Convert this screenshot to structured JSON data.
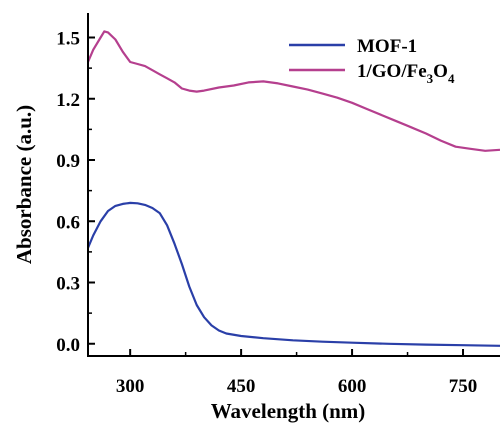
{
  "chart_data": {
    "type": "line",
    "xlabel": "Wavelength (nm)",
    "ylabel": "Absorbance (a.u.)",
    "xlim": [
      243,
      800
    ],
    "ylim": [
      -0.06,
      1.62
    ],
    "xticks": [
      300,
      450,
      600,
      750
    ],
    "xtick_labels": [
      "300",
      "450",
      "600",
      "750"
    ],
    "yticks": [
      0.0,
      0.3,
      0.6,
      0.9,
      1.2,
      1.5
    ],
    "ytick_labels": [
      "0.0",
      "0.3",
      "0.6",
      "0.9",
      "1.2",
      "1.5"
    ],
    "grid": false,
    "legend_position": "top-right",
    "series": [
      {
        "name": "MOF-1",
        "color": "#2a3fa8",
        "points": [
          [
            243,
            0.47
          ],
          [
            250,
            0.53
          ],
          [
            260,
            0.6
          ],
          [
            270,
            0.65
          ],
          [
            280,
            0.675
          ],
          [
            290,
            0.685
          ],
          [
            300,
            0.69
          ],
          [
            310,
            0.688
          ],
          [
            320,
            0.68
          ],
          [
            330,
            0.665
          ],
          [
            340,
            0.64
          ],
          [
            350,
            0.58
          ],
          [
            360,
            0.49
          ],
          [
            370,
            0.39
          ],
          [
            380,
            0.28
          ],
          [
            390,
            0.19
          ],
          [
            400,
            0.13
          ],
          [
            410,
            0.09
          ],
          [
            420,
            0.065
          ],
          [
            430,
            0.05
          ],
          [
            450,
            0.038
          ],
          [
            480,
            0.027
          ],
          [
            520,
            0.017
          ],
          [
            560,
            0.01
          ],
          [
            600,
            0.005
          ],
          [
            650,
            0.0
          ],
          [
            700,
            -0.004
          ],
          [
            750,
            -0.007
          ],
          [
            800,
            -0.01
          ]
        ]
      },
      {
        "name": "1/GO/Fe3O4",
        "legend_main": "1/GO/Fe",
        "legend_sub1": "3",
        "legend_mid": "O",
        "legend_sub2": "4",
        "color": "#b53f8e",
        "points": [
          [
            243,
            1.38
          ],
          [
            250,
            1.44
          ],
          [
            260,
            1.5
          ],
          [
            265,
            1.53
          ],
          [
            270,
            1.525
          ],
          [
            280,
            1.49
          ],
          [
            290,
            1.43
          ],
          [
            300,
            1.38
          ],
          [
            310,
            1.37
          ],
          [
            320,
            1.36
          ],
          [
            330,
            1.34
          ],
          [
            340,
            1.32
          ],
          [
            350,
            1.3
          ],
          [
            360,
            1.28
          ],
          [
            370,
            1.25
          ],
          [
            380,
            1.24
          ],
          [
            390,
            1.235
          ],
          [
            400,
            1.24
          ],
          [
            420,
            1.255
          ],
          [
            440,
            1.265
          ],
          [
            460,
            1.28
          ],
          [
            480,
            1.285
          ],
          [
            500,
            1.275
          ],
          [
            520,
            1.26
          ],
          [
            540,
            1.245
          ],
          [
            560,
            1.225
          ],
          [
            580,
            1.205
          ],
          [
            600,
            1.18
          ],
          [
            620,
            1.15
          ],
          [
            640,
            1.12
          ],
          [
            660,
            1.09
          ],
          [
            680,
            1.06
          ],
          [
            700,
            1.03
          ],
          [
            720,
            0.995
          ],
          [
            740,
            0.965
          ],
          [
            760,
            0.955
          ],
          [
            780,
            0.945
          ],
          [
            800,
            0.95
          ]
        ]
      }
    ]
  }
}
